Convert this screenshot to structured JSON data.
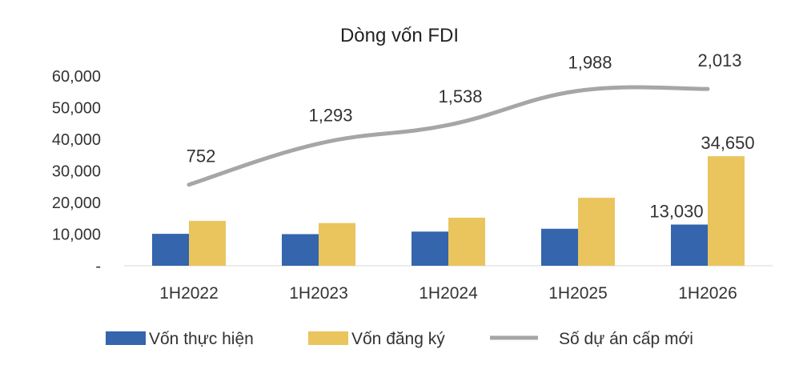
{
  "chart_data": {
    "type": "bar",
    "title": "Dòng vốn FDI",
    "categories": [
      "1H2022",
      "1H2023",
      "1H2024",
      "1H2025",
      "1H2026"
    ],
    "ylim": [
      0,
      60000
    ],
    "yticks": [
      0,
      10000,
      20000,
      30000,
      40000,
      50000,
      60000
    ],
    "ytick_labels": [
      "-",
      "10,000",
      "20,000",
      "30,000",
      "40,000",
      "50,000",
      "60,000"
    ],
    "grid": false,
    "legend_position": "bottom",
    "series": [
      {
        "name": "Vốn thực hiện",
        "kind": "bar",
        "color": "#3465AD",
        "values": [
          10100,
          10000,
          10800,
          11700,
          13030
        ],
        "data_labels": [
          "",
          "",
          "",
          "",
          "13,030"
        ]
      },
      {
        "name": "Vốn đăng ký",
        "kind": "bar",
        "color": "#EAC55E",
        "values": [
          14200,
          13500,
          15200,
          21500,
          34650
        ],
        "data_labels": [
          "",
          "",
          "",
          "",
          "34,650"
        ]
      },
      {
        "name": "Số dự án cấp mới",
        "kind": "line",
        "color": "#A6A6A6",
        "values": [
          752,
          1293,
          1538,
          1988,
          2013
        ],
        "data_labels": [
          "752",
          "1,293",
          "1,538",
          "1,988",
          "2,013"
        ]
      }
    ]
  }
}
